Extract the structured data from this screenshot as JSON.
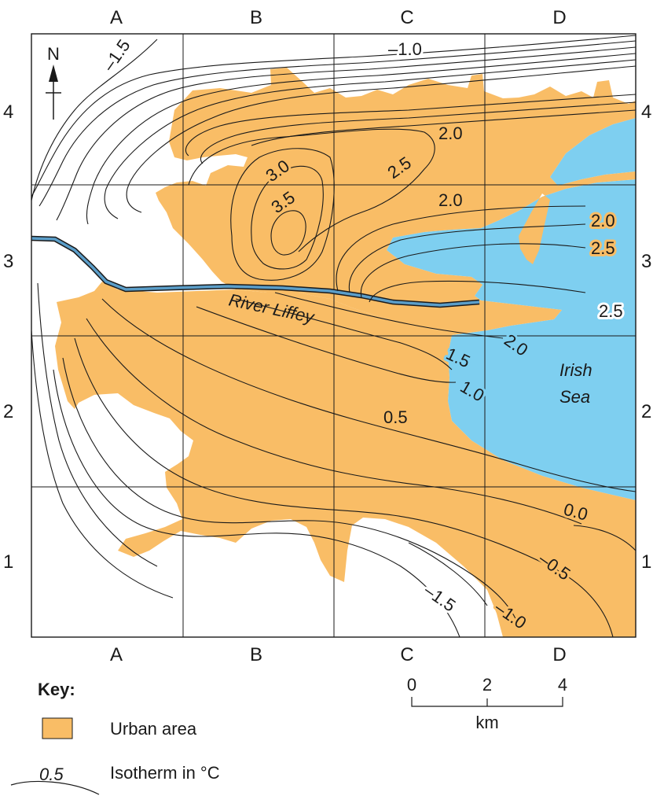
{
  "grid": {
    "columns": [
      "A",
      "B",
      "C",
      "D"
    ],
    "rows": [
      "4",
      "3",
      "2",
      "1"
    ]
  },
  "north_label": "N",
  "colors": {
    "urban": "#f9bd66",
    "sea": "#7ecff0",
    "river": "#5b9ec9",
    "line": "#1a1a1a"
  },
  "isotherms": [
    "–1.5",
    "–1.0",
    "2.0",
    "3.0",
    "2.5",
    "3.5",
    "2.0",
    "2.0",
    "2.5",
    "2.5",
    "1.5",
    "2.0",
    "1.0",
    "0.5",
    "0.0",
    "–0.5",
    "–1.5",
    "–1.0"
  ],
  "places": {
    "river": "River Liffey",
    "sea_line1": "Irish",
    "sea_line2": "Sea"
  },
  "scale": {
    "ticks": [
      "0",
      "2",
      "4"
    ],
    "unit": "km"
  },
  "key": {
    "title": "Key:",
    "urban_label": "Urban area",
    "isotherm_sample": "0.5",
    "isotherm_label": "Isotherm in °C"
  }
}
